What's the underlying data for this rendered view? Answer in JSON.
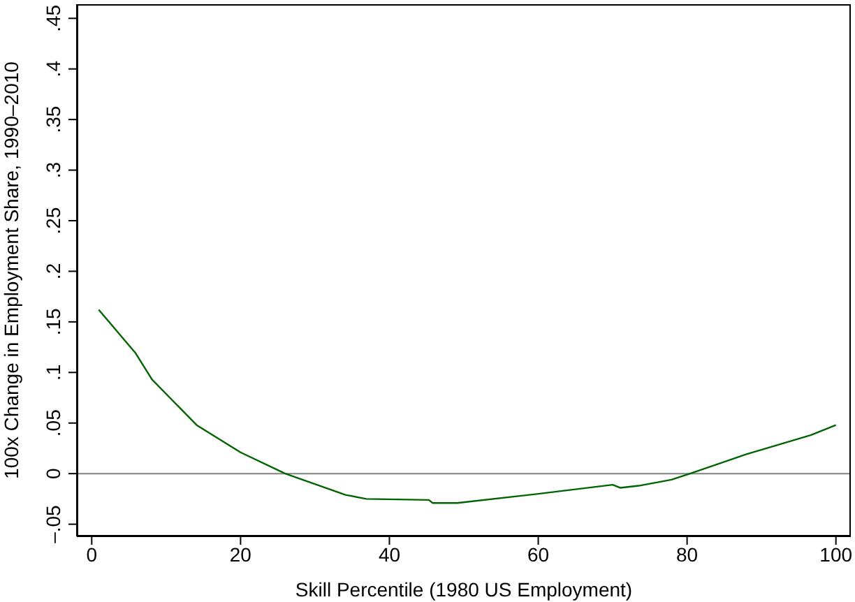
{
  "chart_data": {
    "type": "line",
    "xlabel": "Skill Percentile (1980 US Employment)",
    "ylabel": "100x Change in Employment Share, 1990–2010",
    "x": [
      0.94,
      5.9,
      8.1,
      14.1,
      20,
      26,
      34.1,
      36.9,
      45.3,
      45.8,
      49.1,
      60,
      70,
      71,
      73.5,
      77.9,
      80.4,
      87.9,
      96.6,
      100
    ],
    "series": [
      {
        "color": "#006400",
        "values": [
          0.162,
          0.119,
          0.093,
          0.048,
          0.021,
          0.0,
          -0.021,
          -0.025,
          -0.026,
          -0.029,
          -0.029,
          -0.02,
          -0.011,
          -0.014,
          -0.012,
          -0.006,
          0.0,
          0.019,
          0.038,
          0.048
        ]
      }
    ],
    "xlim": [
      -2,
      102
    ],
    "xticks": [
      0,
      20,
      40,
      60,
      80,
      100
    ],
    "ylim": [
      -0.062,
      0.464
    ],
    "yticks": [
      {
        "value": -0.05,
        "label": "–.05"
      },
      0,
      {
        "value": 0.05,
        "label": ".05"
      },
      {
        "value": 0.1,
        "label": ".1"
      },
      {
        "value": 0.15,
        "label": ".15"
      },
      {
        "value": 0.2,
        "label": ".2"
      },
      {
        "value": 0.25,
        "label": ".25"
      },
      {
        "value": 0.3,
        "label": ".3"
      },
      {
        "value": 0.35,
        "label": ".35"
      },
      {
        "value": 0.4,
        "label": ".4"
      },
      {
        "value": 0.45,
        "label": ".45"
      }
    ],
    "ref_lines": [
      {
        "axis": "y",
        "value": 0,
        "color": "#808080"
      }
    ],
    "grid": false,
    "marker": "none"
  }
}
